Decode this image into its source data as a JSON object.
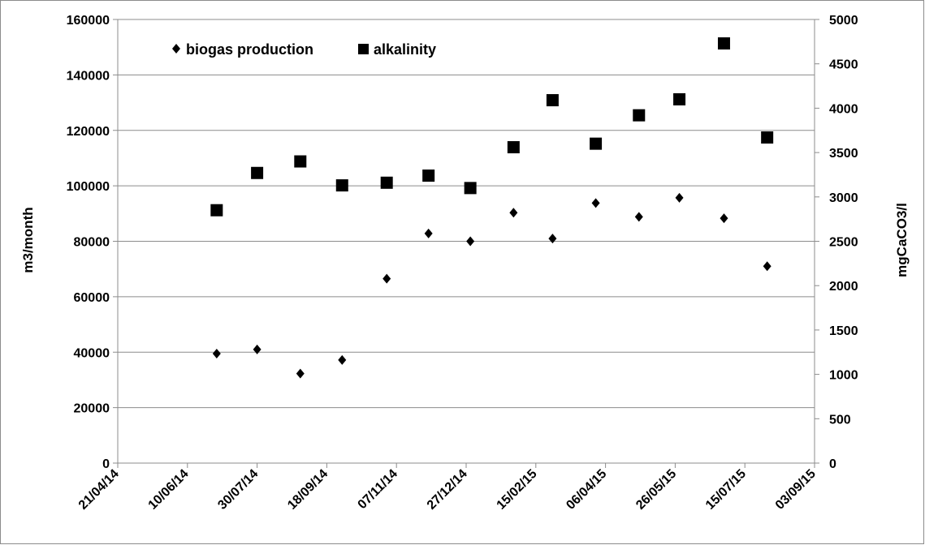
{
  "chart_data": {
    "type": "scatter",
    "title": "",
    "ylabel_left": "m3/month",
    "ylabel_right": "mgCaCO3/l",
    "ylim_left": [
      0,
      160000
    ],
    "ylim_right": [
      0,
      5000
    ],
    "yticks_left": [
      "0",
      "20000",
      "40000",
      "60000",
      "80000",
      "100000",
      "120000",
      "140000",
      "160000"
    ],
    "yticks_right": [
      "0",
      "500",
      "1000",
      "1500",
      "2000",
      "2500",
      "3000",
      "3500",
      "4000",
      "4500",
      "5000"
    ],
    "xlim": [
      "2014-04-21",
      "2015-09-03"
    ],
    "xticks": [
      "21/04/14",
      "10/06/14",
      "30/07/14",
      "18/09/14",
      "07/11/14",
      "27/12/14",
      "15/02/15",
      "06/04/15",
      "26/05/15",
      "15/07/15",
      "03/09/15"
    ],
    "grid": "horizontal",
    "legend_position": "top-left",
    "series": [
      {
        "name": "biogas production",
        "axis": "left",
        "marker": "diamond",
        "color": "#000000",
        "points": [
          {
            "x": "2014-07-01",
            "y": 39500
          },
          {
            "x": "2014-07-30",
            "y": 41000
          },
          {
            "x": "2014-08-30",
            "y": 32300
          },
          {
            "x": "2014-09-29",
            "y": 37200
          },
          {
            "x": "2014-10-31",
            "y": 66500
          },
          {
            "x": "2014-11-30",
            "y": 82800
          },
          {
            "x": "2014-12-30",
            "y": 80000
          },
          {
            "x": "2015-01-30",
            "y": 90300
          },
          {
            "x": "2015-02-27",
            "y": 81000
          },
          {
            "x": "2015-03-30",
            "y": 93800
          },
          {
            "x": "2015-04-30",
            "y": 88800
          },
          {
            "x": "2015-05-29",
            "y": 95700
          },
          {
            "x": "2015-06-30",
            "y": 88300
          },
          {
            "x": "2015-07-31",
            "y": 71000
          }
        ]
      },
      {
        "name": "alkalinity",
        "axis": "right",
        "marker": "square",
        "color": "#000000",
        "points": [
          {
            "x": "2014-07-01",
            "y": 2850
          },
          {
            "x": "2014-07-30",
            "y": 3270
          },
          {
            "x": "2014-08-30",
            "y": 3400
          },
          {
            "x": "2014-09-29",
            "y": 3130
          },
          {
            "x": "2014-10-31",
            "y": 3160
          },
          {
            "x": "2014-11-30",
            "y": 3240
          },
          {
            "x": "2014-12-30",
            "y": 3100
          },
          {
            "x": "2015-01-30",
            "y": 3560
          },
          {
            "x": "2015-02-27",
            "y": 4090
          },
          {
            "x": "2015-03-30",
            "y": 3600
          },
          {
            "x": "2015-04-30",
            "y": 3920
          },
          {
            "x": "2015-05-29",
            "y": 4100
          },
          {
            "x": "2015-06-30",
            "y": 4730
          },
          {
            "x": "2015-07-31",
            "y": 3670
          }
        ]
      }
    ]
  }
}
